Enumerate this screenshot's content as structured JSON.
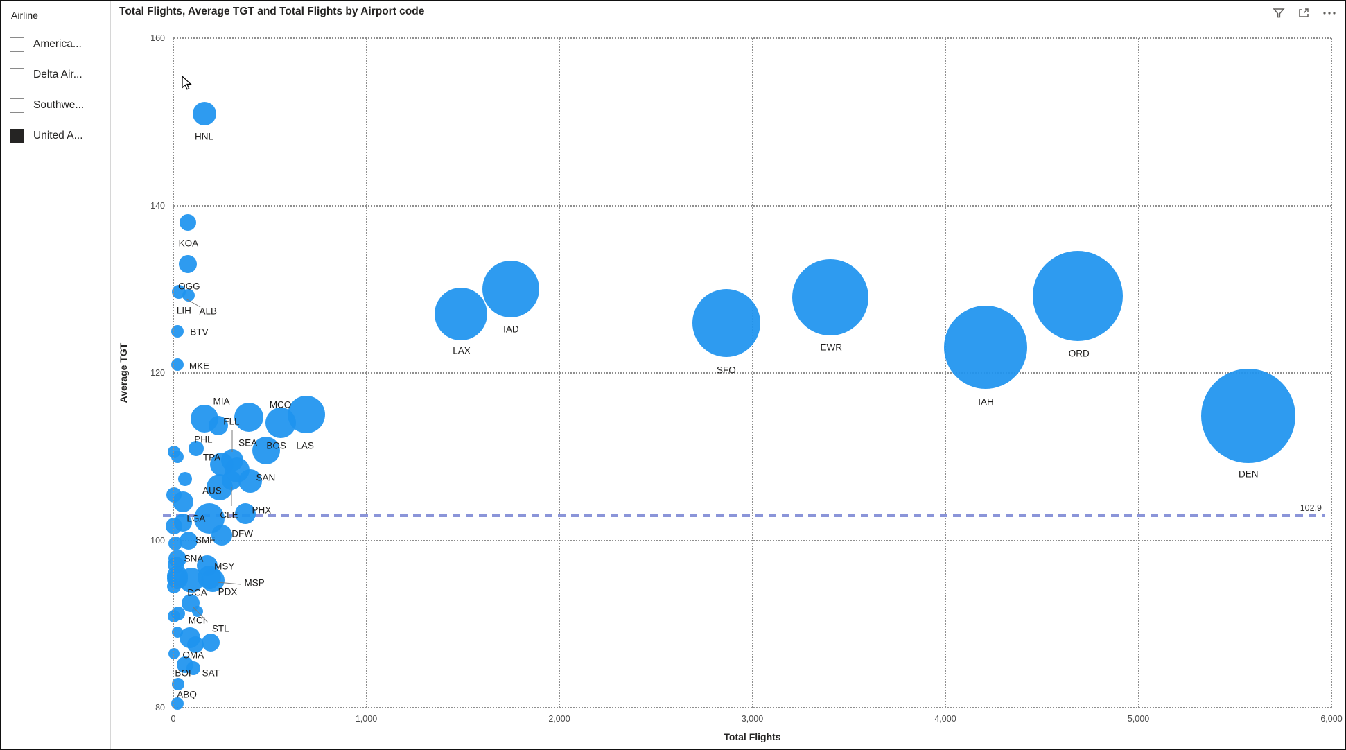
{
  "panel": {
    "title": "Airline",
    "items": [
      {
        "label": "America...",
        "checked": false
      },
      {
        "label": "Delta Air...",
        "checked": false
      },
      {
        "label": "Southwe...",
        "checked": false
      },
      {
        "label": "United A...",
        "checked": true
      }
    ]
  },
  "header": {
    "title": "Total Flights, Average TGT and Total Flights by Airport code",
    "icons": [
      "filter-icon",
      "focus-mode-icon",
      "more-options-icon"
    ]
  },
  "chart_data": {
    "type": "scatter",
    "title": "Total Flights, Average TGT and Total Flights by Airport code",
    "xlabel": "Total Flights",
    "ylabel": "Average TGT",
    "xlim": [
      0,
      6000
    ],
    "ylim": [
      80,
      160
    ],
    "x_ticks": [
      0,
      1000,
      2000,
      3000,
      4000,
      5000,
      6000
    ],
    "x_tick_labels": [
      "0",
      "1,000",
      "2,000",
      "3,000",
      "4,000",
      "5,000",
      "6,000"
    ],
    "y_ticks": [
      80,
      100,
      120,
      140,
      160
    ],
    "y_tick_labels": [
      "80",
      "100",
      "120",
      "140",
      "160"
    ],
    "grid": "dotted",
    "legend_position": "none",
    "series_color": "#1E93EF",
    "ref_line": {
      "value": 102.9,
      "label": "102.9",
      "color": "#8B95D9"
    },
    "points": [
      {
        "code": "HNL",
        "flights": 160,
        "avg_tgt": 151,
        "r": 17,
        "label_offset": [
          0,
          33
        ]
      },
      {
        "code": "KOA",
        "flights": 75,
        "avg_tgt": 138,
        "r": 12,
        "label_offset": [
          1,
          30
        ]
      },
      {
        "code": "OGG",
        "flights": 75,
        "avg_tgt": 133,
        "r": 13,
        "label_offset": [
          2,
          32
        ]
      },
      {
        "code": "LIH",
        "flights": 30,
        "avg_tgt": 129.7,
        "r": 10,
        "label_offset": [
          7,
          27
        ]
      },
      {
        "code": "ALB",
        "flights": 80,
        "avg_tgt": 129.3,
        "r": 9,
        "label_offset": [
          28,
          23
        ],
        "leader": [
          266,
          429,
          287,
          441
        ]
      },
      {
        "code": "BTV",
        "flights": 20,
        "avg_tgt": 125,
        "r": 9,
        "label_offset": [
          32,
          1
        ]
      },
      {
        "code": "MKE",
        "flights": 20,
        "avg_tgt": 121,
        "r": 9,
        "label_offset": [
          32,
          2
        ]
      },
      {
        "code": "MIA",
        "flights": 160,
        "avg_tgt": 114.5,
        "r": 20,
        "label_offset": [
          25,
          -25
        ]
      },
      {
        "code": "SEA",
        "flights": 390,
        "avg_tgt": 114.7,
        "r": 21,
        "label_offset": [
          -1,
          37
        ]
      },
      {
        "code": "MCO",
        "flights": 555,
        "avg_tgt": 114,
        "r": 22,
        "label_offset": [
          0,
          -26
        ]
      },
      {
        "code": "LAS",
        "flights": 690,
        "avg_tgt": 115,
        "r": 27,
        "label_offset": [
          -2,
          45
        ]
      },
      {
        "code": "FLL",
        "flights": 305,
        "avg_tgt": 109.6,
        "r": 16,
        "label_offset": [
          -1,
          -56
        ],
        "leader": [
          333,
          618,
          333,
          650
        ]
      },
      {
        "code": "BOS",
        "flights": 480,
        "avg_tgt": 110.7,
        "r": 20,
        "label_offset": [
          15,
          -7
        ]
      },
      {
        "code": "PHL",
        "flights": 120,
        "avg_tgt": 111,
        "r": 11,
        "label_offset": [
          10,
          -13
        ]
      },
      {
        "code": "TPA",
        "flights": 20,
        "avg_tgt": 110,
        "r": 9,
        "label_offset": [
          50,
          1
        ]
      },
      {
        "code": "SAN",
        "flights": 400,
        "avg_tgt": 107.1,
        "r": 17,
        "label_offset": [
          22,
          -5
        ]
      },
      {
        "code": "AUS",
        "flights": 240,
        "avg_tgt": 106.3,
        "r": 19,
        "label_offset": [
          -11,
          5
        ]
      },
      {
        "code": "PHX",
        "flights": 375,
        "avg_tgt": 103.2,
        "r": 15,
        "label_offset": [
          23,
          -5
        ]
      },
      {
        "code": "CLE",
        "flights": 300,
        "avg_tgt": 107.2,
        "r": 14,
        "label_offset": [
          -3,
          50
        ],
        "leader": [
          332,
          700,
          332,
          728
        ]
      },
      {
        "code": "LGA",
        "flights": 50,
        "avg_tgt": 102.1,
        "r": 13,
        "label_offset": [
          19,
          -6
        ]
      },
      {
        "code": "DFW",
        "flights": 250,
        "avg_tgt": 100.6,
        "r": 15,
        "label_offset": [
          30,
          -2
        ]
      },
      {
        "code": "SMF",
        "flights": 80,
        "avg_tgt": 100,
        "r": 13,
        "label_offset": [
          24,
          -1
        ]
      },
      {
        "code": "SNA",
        "flights": 20,
        "avg_tgt": 97.8,
        "r": 13,
        "label_offset": [
          24,
          0
        ]
      },
      {
        "code": "MSY",
        "flights": 175,
        "avg_tgt": 97,
        "r": 15,
        "label_offset": [
          25,
          1
        ]
      },
      {
        "code": "MSP",
        "flights": 205,
        "avg_tgt": 95.2,
        "r": 17,
        "label_offset": [
          60,
          4
        ],
        "leader": [
          312,
          838,
          345,
          841
        ]
      },
      {
        "code": "DCA",
        "flights": 20,
        "avg_tgt": 95.4,
        "r": 15,
        "label_offset": [
          29,
          20
        ]
      },
      {
        "code": "PDX",
        "flights": 185,
        "avg_tgt": 95.6,
        "r": 17,
        "label_offset": [
          27,
          21
        ]
      },
      {
        "code": "MCI",
        "flights": 90,
        "avg_tgt": 92.5,
        "r": 13,
        "label_offset": [
          9,
          25
        ],
        "leader": [
          276,
          873,
          298,
          896
        ]
      },
      {
        "code": "STL",
        "flights": 195,
        "avg_tgt": 87.8,
        "r": 13,
        "label_offset": [
          14,
          -20
        ]
      },
      {
        "code": "OMA",
        "flights": 60,
        "avg_tgt": 85.1,
        "r": 12,
        "label_offset": [
          12,
          -14
        ]
      },
      {
        "code": "BOI",
        "flights": 25,
        "avg_tgt": 82.8,
        "r": 9,
        "label_offset": [
          7,
          -16
        ]
      },
      {
        "code": "SAT",
        "flights": 105,
        "avg_tgt": 84.7,
        "r": 10,
        "label_offset": [
          25,
          7
        ]
      },
      {
        "code": "ABQ",
        "flights": 20,
        "avg_tgt": 80.5,
        "r": 9,
        "label_offset": [
          14,
          -13
        ]
      },
      {
        "code": "LAX",
        "flights": 1490,
        "avg_tgt": 127,
        "r": 38,
        "label_offset": [
          1,
          53
        ]
      },
      {
        "code": "IAD",
        "flights": 1750,
        "avg_tgt": 130,
        "r": 41,
        "label_offset": [
          0,
          58
        ]
      },
      {
        "code": "SFO",
        "flights": 2865,
        "avg_tgt": 126,
        "r": 49,
        "label_offset": [
          0,
          68
        ]
      },
      {
        "code": "EWR",
        "flights": 3405,
        "avg_tgt": 129,
        "r": 55,
        "label_offset": [
          1,
          72
        ]
      },
      {
        "code": "IAH",
        "flights": 4210,
        "avg_tgt": 123.1,
        "r": 60,
        "label_offset": [
          0,
          79
        ]
      },
      {
        "code": "ORD",
        "flights": 4685,
        "avg_tgt": 129.2,
        "r": 65,
        "label_offset": [
          2,
          83
        ]
      },
      {
        "code": "DEN",
        "flights": 5570,
        "avg_tgt": 114.9,
        "r": 68,
        "label_offset": [
          0,
          84
        ]
      },
      {
        "code": "",
        "flights": 235,
        "avg_tgt": 113.7,
        "r": 14
      },
      {
        "code": "",
        "flights": 330,
        "avg_tgt": 108.4,
        "r": 18
      },
      {
        "code": "",
        "flights": 250,
        "avg_tgt": 109.1,
        "r": 17
      },
      {
        "code": "",
        "flights": 50,
        "avg_tgt": 104.6,
        "r": 15
      },
      {
        "code": "",
        "flights": 5,
        "avg_tgt": 105.4,
        "r": 11
      },
      {
        "code": "",
        "flights": 187,
        "avg_tgt": 102.6,
        "r": 22
      },
      {
        "code": "",
        "flights": 5,
        "avg_tgt": 101.7,
        "r": 12
      },
      {
        "code": "",
        "flights": 10,
        "avg_tgt": 99.6,
        "r": 10
      },
      {
        "code": "",
        "flights": 15,
        "avg_tgt": 97.1,
        "r": 12
      },
      {
        "code": "",
        "flights": 95,
        "avg_tgt": 95.2,
        "r": 18
      },
      {
        "code": "",
        "flights": 20,
        "avg_tgt": 95.7,
        "r": 15
      },
      {
        "code": "",
        "flights": 5,
        "avg_tgt": 94.5,
        "r": 10
      },
      {
        "code": "",
        "flights": 25,
        "avg_tgt": 91.3,
        "r": 10
      },
      {
        "code": "",
        "flights": 125,
        "avg_tgt": 91.5,
        "r": 8
      },
      {
        "code": "",
        "flights": 5,
        "avg_tgt": 90.9,
        "r": 9
      },
      {
        "code": "",
        "flights": 20,
        "avg_tgt": 89,
        "r": 8
      },
      {
        "code": "",
        "flights": 85,
        "avg_tgt": 88.4,
        "r": 15
      },
      {
        "code": "",
        "flights": 115,
        "avg_tgt": 87.5,
        "r": 12
      },
      {
        "code": "",
        "flights": 5,
        "avg_tgt": 86.5,
        "r": 8
      },
      {
        "code": "",
        "flights": 60,
        "avg_tgt": 107.3,
        "r": 10
      },
      {
        "code": "",
        "flights": 5,
        "avg_tgt": 110.6,
        "r": 9
      }
    ]
  }
}
